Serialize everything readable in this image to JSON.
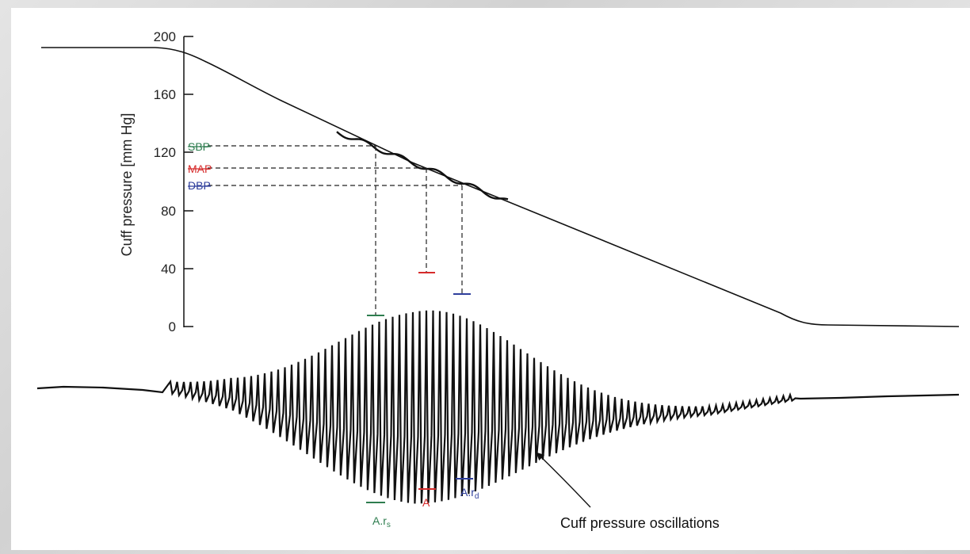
{
  "yaxis": {
    "title": "Cuff pressure [mm Hg]",
    "ticks": [
      "200",
      "160",
      "120",
      "80",
      "40",
      "0"
    ]
  },
  "pressure_markers": {
    "sbp": {
      "label": "SBP",
      "value": 122,
      "color": "#2e7d4f"
    },
    "map": {
      "label": "MAP",
      "value": 108,
      "color": "#d62b2b"
    },
    "dbp": {
      "label": "DBP",
      "value": 96,
      "color": "#2f3f9c"
    }
  },
  "amplitude_markers": {
    "ars": {
      "label": "A.r",
      "subscript": "s",
      "color": "#2e7d4f"
    },
    "a": {
      "label": "A",
      "color": "#d62b2b"
    },
    "ard": {
      "label": "A.r",
      "subscript": "d",
      "color": "#2f3f9c"
    }
  },
  "annotation": {
    "text": "Cuff pressure oscillations"
  }
}
